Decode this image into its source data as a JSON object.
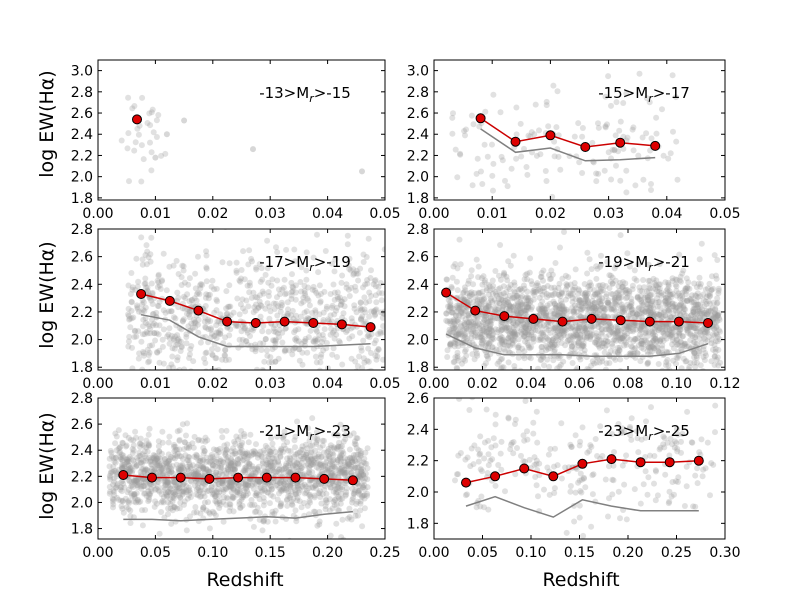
{
  "figure": {
    "ylabel": "log EW(Hα)",
    "xlabel": "Redshift"
  },
  "colors": {
    "median_marker": "#dd0000",
    "median_line": "#cc0000",
    "reference_line": "#808080",
    "scatter": "#9a9a9a"
  },
  "chart_data": [
    {
      "type": "scatter",
      "title": "-13>M_r>-15",
      "label_parts": [
        "-13>M",
        "r",
        ">-15"
      ],
      "xlim": [
        0,
        0.05
      ],
      "ylim": [
        1.78,
        3.1
      ],
      "xticks": [
        0.0,
        0.01,
        0.02,
        0.03,
        0.04,
        0.05
      ],
      "xtick_labels": [
        "0.00",
        "0.01",
        "0.02",
        "0.03",
        "0.04",
        "0.05"
      ],
      "yticks": [
        1.8,
        2.0,
        2.2,
        2.4,
        2.6,
        2.8,
        3.0
      ],
      "ytick_labels": [
        "1.8",
        "2.0",
        "2.2",
        "2.4",
        "2.6",
        "2.8",
        "3.0"
      ],
      "xlabel": "",
      "ylabel": "log EW(Hα)",
      "median": {
        "x": [
          0.0068
        ],
        "y": [
          2.54
        ]
      },
      "reference": {
        "x": [],
        "y": []
      },
      "scatter_density": {
        "n": 32,
        "xmin": 0.004,
        "xmax": 0.012,
        "ymean": 2.4,
        "ysd": 0.26,
        "sparse_extra": [
          [
            0.015,
            2.53
          ],
          [
            0.027,
            2.26
          ],
          [
            0.046,
            2.05
          ],
          [
            0.012,
            2.4
          ],
          [
            0.01,
            2.18
          ]
        ]
      }
    },
    {
      "type": "scatter",
      "title": "-15>M_r>-17",
      "label_parts": [
        "-15>M",
        "r",
        ">-17"
      ],
      "xlim": [
        0,
        0.05
      ],
      "ylim": [
        1.78,
        3.1
      ],
      "xticks": [
        0.0,
        0.01,
        0.02,
        0.03,
        0.04,
        0.05
      ],
      "xtick_labels": [
        "0.00",
        "0.01",
        "0.02",
        "0.03",
        "0.04",
        "0.05"
      ],
      "yticks": [
        1.8,
        2.0,
        2.2,
        2.4,
        2.6,
        2.8,
        3.0
      ],
      "ytick_labels": [
        "1.8",
        "2.0",
        "2.2",
        "2.4",
        "2.6",
        "2.8",
        "3.0"
      ],
      "xlabel": "",
      "ylabel": "",
      "median": {
        "x": [
          0.008,
          0.014,
          0.02,
          0.026,
          0.032,
          0.038
        ],
        "y": [
          2.55,
          2.33,
          2.39,
          2.28,
          2.32,
          2.29
        ]
      },
      "reference": {
        "x": [
          0.008,
          0.014,
          0.02,
          0.026,
          0.032,
          0.038
        ],
        "y": [
          2.45,
          2.23,
          2.27,
          2.15,
          2.16,
          2.18
        ]
      },
      "scatter_density": {
        "n": 150,
        "xmin": 0.003,
        "xmax": 0.042,
        "ymean": 2.3,
        "ysd": 0.28,
        "sparse_extra": []
      }
    },
    {
      "type": "scatter",
      "title": "-17>M_r>-19",
      "label_parts": [
        "-17>M",
        "r",
        ">-19"
      ],
      "xlim": [
        0,
        0.05
      ],
      "ylim": [
        1.78,
        2.8
      ],
      "xticks": [
        0.0,
        0.01,
        0.02,
        0.03,
        0.04,
        0.05
      ],
      "xtick_labels": [
        "0.00",
        "0.01",
        "0.02",
        "0.03",
        "0.04",
        "0.05"
      ],
      "yticks": [
        1.8,
        2.0,
        2.2,
        2.4,
        2.6,
        2.8
      ],
      "ytick_labels": [
        "1.8",
        "2.0",
        "2.2",
        "2.4",
        "2.6",
        "2.8"
      ],
      "xlabel": "",
      "ylabel": "log EW(Hα)",
      "median": {
        "x": [
          0.0075,
          0.0125,
          0.0175,
          0.0225,
          0.0275,
          0.0325,
          0.0375,
          0.0425,
          0.0475
        ],
        "y": [
          2.33,
          2.28,
          2.21,
          2.13,
          2.12,
          2.13,
          2.12,
          2.11,
          2.09
        ]
      },
      "reference": {
        "x": [
          0.0075,
          0.0125,
          0.0175,
          0.0225,
          0.0275,
          0.0325,
          0.0375,
          0.0425,
          0.0475
        ],
        "y": [
          2.18,
          2.14,
          2.02,
          1.95,
          1.95,
          1.95,
          1.95,
          1.96,
          1.97
        ]
      },
      "scatter_density": {
        "n": 900,
        "xmin": 0.005,
        "xmax": 0.05,
        "ymean": 2.15,
        "ysd": 0.24,
        "sparse_extra": []
      }
    },
    {
      "type": "scatter",
      "title": "-19>M_r>-21",
      "label_parts": [
        "-19>M",
        "r",
        ">-21"
      ],
      "xlim": [
        0,
        0.12
      ],
      "ylim": [
        1.78,
        2.8
      ],
      "xticks": [
        0.0,
        0.02,
        0.04,
        0.06,
        0.08,
        0.1,
        0.12
      ],
      "xtick_labels": [
        "0.00",
        "0.02",
        "0.04",
        "0.06",
        "0.08",
        "0.10",
        "0.12"
      ],
      "yticks": [
        1.8,
        2.0,
        2.2,
        2.4,
        2.6,
        2.8
      ],
      "ytick_labels": [
        "1.8",
        "2.0",
        "2.2",
        "2.4",
        "2.6",
        "2.8"
      ],
      "xlabel": "",
      "ylabel": "",
      "median": {
        "x": [
          0.005,
          0.017,
          0.029,
          0.041,
          0.053,
          0.065,
          0.077,
          0.089,
          0.101,
          0.113
        ],
        "y": [
          2.34,
          2.21,
          2.17,
          2.15,
          2.13,
          2.15,
          2.14,
          2.13,
          2.13,
          2.12
        ]
      },
      "reference": {
        "x": [
          0.005,
          0.017,
          0.029,
          0.041,
          0.053,
          0.065,
          0.077,
          0.089,
          0.101,
          0.113
        ],
        "y": [
          2.04,
          1.94,
          1.89,
          1.89,
          1.89,
          1.88,
          1.88,
          1.88,
          1.9,
          1.97
        ]
      },
      "scatter_density": {
        "n": 2200,
        "xmin": 0.005,
        "xmax": 0.118,
        "ymean": 2.14,
        "ysd": 0.17,
        "sparse_extra": []
      }
    },
    {
      "type": "scatter",
      "title": "-21>M_r>-23",
      "label_parts": [
        "-21>M",
        "r",
        ">-23"
      ],
      "xlim": [
        0,
        0.25
      ],
      "ylim": [
        1.72,
        2.8
      ],
      "xticks": [
        0.0,
        0.05,
        0.1,
        0.15,
        0.2,
        0.25
      ],
      "xtick_labels": [
        "0.00",
        "0.05",
        "0.10",
        "0.15",
        "0.20",
        "0.25"
      ],
      "yticks": [
        1.8,
        2.0,
        2.2,
        2.4,
        2.6,
        2.8
      ],
      "ytick_labels": [
        "1.8",
        "2.0",
        "2.2",
        "2.4",
        "2.6",
        "2.8"
      ],
      "xlabel": "Redshift",
      "ylabel": "log EW(Hα)",
      "median": {
        "x": [
          0.022,
          0.047,
          0.072,
          0.097,
          0.122,
          0.147,
          0.172,
          0.197,
          0.222
        ],
        "y": [
          2.21,
          2.19,
          2.19,
          2.18,
          2.19,
          2.19,
          2.19,
          2.18,
          2.17
        ]
      },
      "reference": {
        "x": [
          0.022,
          0.047,
          0.072,
          0.097,
          0.122,
          0.147,
          0.172,
          0.197,
          0.222
        ],
        "y": [
          1.87,
          1.87,
          1.86,
          1.87,
          1.88,
          1.89,
          1.88,
          1.91,
          1.93
        ]
      },
      "scatter_density": {
        "n": 1700,
        "xmin": 0.01,
        "xmax": 0.235,
        "ymean": 2.2,
        "ysd": 0.15,
        "sparse_extra": []
      }
    },
    {
      "type": "scatter",
      "title": "-23>M_r>-25",
      "label_parts": [
        "-23>M",
        "r",
        ">-25"
      ],
      "xlim": [
        0,
        0.3
      ],
      "ylim": [
        1.7,
        2.6
      ],
      "xticks": [
        0.0,
        0.05,
        0.1,
        0.15,
        0.2,
        0.25,
        0.3
      ],
      "xtick_labels": [
        "0.00",
        "0.05",
        "0.10",
        "0.15",
        "0.20",
        "0.25",
        "0.30"
      ],
      "yticks": [
        1.8,
        2.0,
        2.2,
        2.4,
        2.6
      ],
      "ytick_labels": [
        "1.8",
        "2.0",
        "2.2",
        "2.4",
        "2.6"
      ],
      "xlabel": "Redshift",
      "ylabel": "",
      "median": {
        "x": [
          0.033,
          0.063,
          0.093,
          0.123,
          0.153,
          0.183,
          0.213,
          0.243,
          0.273
        ],
        "y": [
          2.06,
          2.1,
          2.15,
          2.1,
          2.18,
          2.21,
          2.19,
          2.19,
          2.2
        ]
      },
      "reference": {
        "x": [
          0.033,
          0.063,
          0.093,
          0.123,
          0.153,
          0.183,
          0.213,
          0.243,
          0.273
        ],
        "y": [
          1.91,
          1.97,
          1.9,
          1.84,
          1.95,
          1.91,
          1.88,
          1.88,
          1.88
        ]
      },
      "scatter_density": {
        "n": 260,
        "xmin": 0.02,
        "xmax": 0.29,
        "ymean": 2.17,
        "ysd": 0.17,
        "sparse_extra": []
      }
    }
  ]
}
